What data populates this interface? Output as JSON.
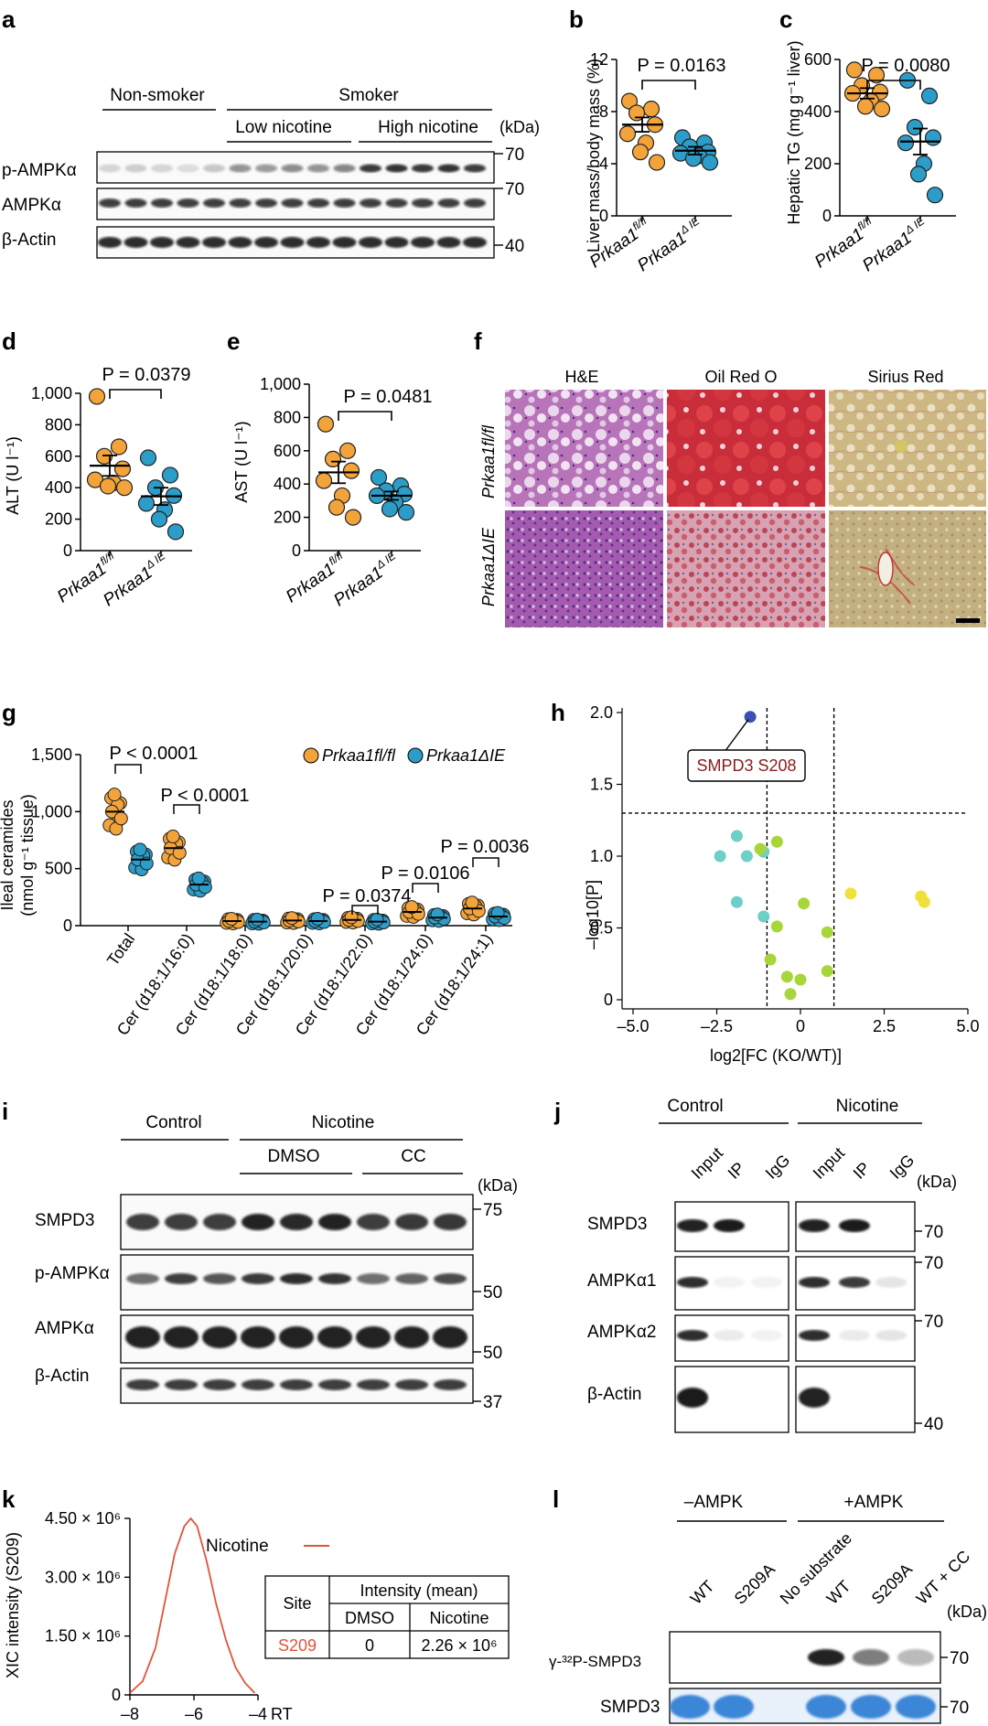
{
  "colors": {
    "orange": "#f2a33a",
    "blue": "#2c9dc9",
    "tick": "#000000",
    "smpd3_label": "#8b1a1a",
    "nicotine_line": "#e0533a",
    "cyan": "#6dcfc7",
    "green": "#a6d63a",
    "yellow": "#f0e13a",
    "navy": "#3a4fb0",
    "coomassie": "#3a86d6"
  },
  "panels": {
    "a": {
      "letter": "a",
      "nonsmoker": "Non-smoker",
      "smoker": "Smoker",
      "low": "Low nicotine",
      "high": "High nicotine",
      "kda": "(kDa)",
      "rows": [
        {
          "label": "p-AMPKα",
          "marker": "70"
        },
        {
          "label": "AMPKα",
          "marker": "70"
        },
        {
          "label": "β-Actin",
          "marker": "40"
        }
      ]
    },
    "b": {
      "letter": "b",
      "ylabel": "Liver mass/body mass (%)",
      "p": "P = 0.0163"
    },
    "c": {
      "letter": "c",
      "ylabel": "Hepatic TG (mg g⁻¹ liver)",
      "p": "P = 0.0080"
    },
    "d": {
      "letter": "d",
      "ylabel": "ALT (U l⁻¹)",
      "p": "P = 0.0379"
    },
    "e": {
      "letter": "e",
      "ylabel": "AST (U l⁻¹)",
      "p": "P = 0.0481"
    },
    "f": {
      "letter": "f",
      "cols": [
        "H&E",
        "Oil Red O",
        "Sirius Red"
      ],
      "rows": [
        "Prkaa1fl/fl",
        "Prkaa1ΔIE"
      ]
    },
    "g": {
      "letter": "g",
      "ylabel1": "Ileal ceramides",
      "ylabel2": "(nmol g⁻¹ tissue)",
      "pvals": [
        "P < 0.0001",
        "P < 0.0001",
        "P = 0.0374",
        "P = 0.0106",
        "P = 0.0036"
      ],
      "legend": [
        "Prkaa1fl/fl",
        "Prkaa1ΔIE"
      ]
    },
    "h": {
      "letter": "h",
      "ylabel": "–log10[P]",
      "xlabel": "log2[FC (KO/WT)]",
      "callout": "SMPD3 S208"
    },
    "i": {
      "letter": "i",
      "control": "Control",
      "nicotine": "Nicotine",
      "dmso": "DMSO",
      "cc": "CC",
      "kda": "(kDa)",
      "rows": [
        {
          "label": "SMPD3",
          "marker": "75"
        },
        {
          "label": "p-AMPKα",
          "marker": "50"
        },
        {
          "label": "AMPKα",
          "marker": "50"
        },
        {
          "label": "β-Actin",
          "marker": "37"
        }
      ]
    },
    "j": {
      "letter": "j",
      "control": "Control",
      "nicotine": "Nicotine",
      "lanes": [
        "Input",
        "IP",
        "IgG"
      ],
      "kda": "(kDa)",
      "rows": [
        {
          "label": "SMPD3",
          "marker": "70"
        },
        {
          "label": "AMPKα1",
          "marker": "70"
        },
        {
          "label": "AMPKα2",
          "marker": "70"
        },
        {
          "label": "β-Actin",
          "marker": "40"
        }
      ]
    },
    "k": {
      "letter": "k",
      "ylabel": "XIC intensity (S209)",
      "xlabel": "RT",
      "legend": "Nicotine",
      "table": {
        "site": "Site",
        "intensity": "Intensity (mean)",
        "dmso": "DMSO",
        "nicotine": "Nicotine",
        "row_site": "S209",
        "row_dmso": "0",
        "row_nic": "2.26 × 10⁶"
      }
    },
    "l": {
      "letter": "l",
      "minus": "–AMPK",
      "plus": "+AMPK",
      "lanes": [
        "WT",
        "S209A",
        "No substrate",
        "WT",
        "S209A",
        "WT + CC"
      ],
      "kda": "(kDa)",
      "rows": [
        {
          "label": "γ-³²P-SMPD3",
          "marker": "70"
        },
        {
          "label": "SMPD3",
          "marker": "70"
        }
      ]
    }
  },
  "chart_data": [
    {
      "id": "b",
      "type": "scatter",
      "title": "",
      "xlabel": "",
      "ylabel": "Liver mass/body mass (%)",
      "ylim": [
        0,
        12
      ],
      "yticks": [
        0,
        4,
        8,
        12
      ],
      "categories": [
        "Prkaa1fl/fl",
        "Prkaa1ΔIE"
      ],
      "series": [
        {
          "name": "Prkaa1fl/fl",
          "values": [
            8.8,
            8.2,
            7.9,
            7.0,
            6.3,
            5.6,
            4.9,
            4.1
          ],
          "mean": 7.0,
          "sem": 0.55
        },
        {
          "name": "Prkaa1ΔIE",
          "values": [
            6.0,
            5.6,
            5.3,
            4.9,
            4.8,
            4.6,
            4.4,
            4.1
          ],
          "mean": 5.0,
          "sem": 0.3
        }
      ]
    },
    {
      "id": "c",
      "type": "scatter",
      "ylabel": "Hepatic TG (mg g⁻¹ liver)",
      "ylim": [
        0,
        600
      ],
      "yticks": [
        0,
        200,
        400,
        600
      ],
      "categories": [
        "Prkaa1fl/fl",
        "Prkaa1ΔIE"
      ],
      "series": [
        {
          "name": "Prkaa1fl/fl",
          "values": [
            560,
            540,
            500,
            475,
            470,
            440,
            420,
            410
          ],
          "mean": 470,
          "sem": 20
        },
        {
          "name": "Prkaa1ΔIE",
          "values": [
            520,
            460,
            340,
            300,
            280,
            200,
            160,
            80
          ],
          "mean": 285,
          "sem": 50
        }
      ]
    },
    {
      "id": "d",
      "type": "scatter",
      "ylabel": "ALT (U l⁻¹)",
      "ylim": [
        0,
        1000
      ],
      "yticks": [
        0,
        200,
        400,
        600,
        800,
        1000
      ],
      "categories": [
        "Prkaa1fl/fl",
        "Prkaa1ΔIE"
      ],
      "series": [
        {
          "name": "Prkaa1fl/fl",
          "values": [
            980,
            660,
            600,
            520,
            450,
            430,
            410,
            400
          ],
          "mean": 540,
          "sem": 65
        },
        {
          "name": "Prkaa1ΔIE",
          "values": [
            590,
            480,
            400,
            350,
            300,
            260,
            200,
            120
          ],
          "mean": 345,
          "sem": 55
        }
      ]
    },
    {
      "id": "e",
      "type": "scatter",
      "ylabel": "AST (U l⁻¹)",
      "ylim": [
        0,
        1000
      ],
      "yticks": [
        0,
        200,
        400,
        600,
        800,
        1000
      ],
      "categories": [
        "Prkaa1fl/fl",
        "Prkaa1ΔIE"
      ],
      "series": [
        {
          "name": "Prkaa1fl/fl",
          "values": [
            760,
            600,
            550,
            480,
            420,
            330,
            260,
            200
          ],
          "mean": 470,
          "sem": 65
        },
        {
          "name": "Prkaa1ΔIE",
          "values": [
            440,
            390,
            360,
            340,
            330,
            290,
            250,
            230
          ],
          "mean": 330,
          "sem": 25
        }
      ]
    },
    {
      "id": "g",
      "type": "scatter",
      "ylabel": "Ileal ceramides (nmol g⁻¹ tissue)",
      "ylim": [
        0,
        1500
      ],
      "yticks": [
        0,
        500,
        1000,
        1500
      ],
      "ytick_labels": [
        "0",
        "500",
        "1,000",
        "1,500"
      ],
      "categories": [
        "Total",
        "Cer (d18:1/16:0)",
        "Cer (d18:1/18:0)",
        "Cer (d18:1/20:0)",
        "Cer (d18:1/22:0)",
        "Cer (d18:1/24:0)",
        "Cer (d18:1/24:1)"
      ],
      "series": [
        {
          "name": "Prkaa1fl/fl",
          "means": [
            1000,
            680,
            40,
            45,
            50,
            120,
            150
          ]
        },
        {
          "name": "Prkaa1ΔIE",
          "means": [
            580,
            360,
            35,
            40,
            35,
            70,
            80
          ]
        }
      ]
    },
    {
      "id": "h",
      "type": "scatter",
      "xlabel": "log2[FC (KO/WT)]",
      "ylabel": "–log10[P]",
      "xlim": [
        -5,
        5
      ],
      "ylim": [
        0,
        2
      ],
      "xticks": [
        -5,
        -2.5,
        0,
        2.5,
        5
      ],
      "xtick_labels": [
        "–5.0",
        "–2.5",
        "0",
        "2.5",
        "5.0"
      ],
      "yticks": [
        0,
        0.5,
        1,
        1.5,
        2
      ],
      "ytick_labels": [
        "0",
        "0.5",
        "1.0",
        "1.5",
        "2.0"
      ],
      "points": [
        {
          "x": -1.5,
          "y": 1.97,
          "c": "navy"
        },
        {
          "x": -2.4,
          "y": 1.0,
          "c": "cyan"
        },
        {
          "x": -1.9,
          "y": 1.14,
          "c": "cyan"
        },
        {
          "x": -1.6,
          "y": 1.0,
          "c": "cyan"
        },
        {
          "x": -1.1,
          "y": 1.03,
          "c": "cyan"
        },
        {
          "x": -1.9,
          "y": 0.68,
          "c": "cyan"
        },
        {
          "x": -1.1,
          "y": 0.58,
          "c": "cyan"
        },
        {
          "x": -1.2,
          "y": 1.05,
          "c": "green"
        },
        {
          "x": -0.7,
          "y": 1.1,
          "c": "green"
        },
        {
          "x": 0.1,
          "y": 0.67,
          "c": "green"
        },
        {
          "x": -0.7,
          "y": 0.51,
          "c": "green"
        },
        {
          "x": -0.9,
          "y": 0.28,
          "c": "green"
        },
        {
          "x": -0.4,
          "y": 0.16,
          "c": "green"
        },
        {
          "x": 0.0,
          "y": 0.14,
          "c": "green"
        },
        {
          "x": -0.3,
          "y": 0.04,
          "c": "green"
        },
        {
          "x": 0.8,
          "y": 0.47,
          "c": "green"
        },
        {
          "x": 0.8,
          "y": 0.2,
          "c": "green"
        },
        {
          "x": 1.5,
          "y": 0.74,
          "c": "yellow"
        },
        {
          "x": 3.6,
          "y": 0.72,
          "c": "yellow"
        },
        {
          "x": 3.7,
          "y": 0.68,
          "c": "yellow"
        }
      ],
      "vlines": [
        -1,
        1
      ],
      "hline": 1.3
    },
    {
      "id": "k",
      "type": "line",
      "xlabel": "RT",
      "ylabel": "XIC intensity (S209)",
      "xlim": [
        -8,
        -4
      ],
      "xticks": [
        -8,
        -6,
        -4
      ],
      "xtick_labels": [
        "–8",
        "–6",
        "–4"
      ],
      "ylim": [
        0,
        4.5
      ],
      "yticks": [
        0,
        1.5,
        3,
        4.5
      ],
      "ytick_labels": [
        "0",
        "1.50 × 10⁶",
        "3.00 × 10⁶",
        "4.50 × 10⁶"
      ],
      "series": [
        {
          "name": "Nicotine",
          "x": [
            -8,
            -7.6,
            -7.2,
            -6.9,
            -6.6,
            -6.3,
            -6.1,
            -5.9,
            -5.6,
            -5.3,
            -5.0,
            -4.7,
            -4.4,
            -4.1
          ],
          "y": [
            0.05,
            0.35,
            1.2,
            2.4,
            3.6,
            4.3,
            4.5,
            4.3,
            3.4,
            2.3,
            1.4,
            0.7,
            0.3,
            0.05
          ]
        }
      ]
    }
  ]
}
